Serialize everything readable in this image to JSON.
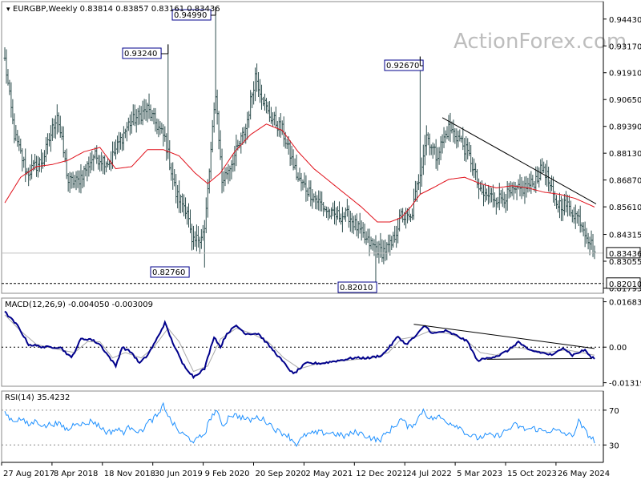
{
  "header": {
    "symbol": "EURGBP,Weekly",
    "ohlc": "0.83814 0.83857 0.83161 0.83436"
  },
  "watermark": "ActionForex.com",
  "colors": {
    "price_bars": "#2f4f4f",
    "ma": "#e0101a",
    "macd_line": "#00008b",
    "macd_signal": "#a9a9a9",
    "rsi": "#1e90ff",
    "trendline": "#000000",
    "axis": "#000000"
  },
  "chart_data": [
    {
      "type": "bar",
      "panel": "price",
      "ylim": [
        0.8155,
        0.9525
      ],
      "y_ticks": [
        "0.94430",
        "0.93170",
        "0.91910",
        "0.90650",
        "0.89390",
        "0.88130",
        "0.86870",
        "0.85610",
        "0.84315",
        "0.83055",
        "0.81795"
      ],
      "current_price_label": "0.83436",
      "dashed_level_label": "0.82010",
      "x_ticks": [
        "27 Aug 2017",
        "8 Apr 2018",
        "18 Nov 2018",
        "30 Jun 2019",
        "9 Feb 2020",
        "20 Sep 2020",
        "2 May 2021",
        "12 Dec 2021",
        "24 Jul 2022",
        "5 Mar 2023",
        "15 Oct 2023",
        "26 May 2024"
      ],
      "annotations": [
        "0.94990",
        "0.93240",
        "0.92670",
        "0.82760",
        "0.82010"
      ],
      "close_anchors": [
        [
          0,
          0.925
        ],
        [
          6,
          0.89
        ],
        [
          14,
          0.872
        ],
        [
          24,
          0.878
        ],
        [
          33,
          0.9
        ],
        [
          40,
          0.868
        ],
        [
          46,
          0.868
        ],
        [
          56,
          0.88
        ],
        [
          66,
          0.877
        ],
        [
          78,
          0.895
        ],
        [
          90,
          0.902
        ],
        [
          101,
          0.888
        ],
        [
          108,
          0.862
        ],
        [
          115,
          0.855
        ],
        [
          118,
          0.838
        ],
        [
          126,
          0.845
        ],
        [
          133,
          0.91
        ],
        [
          137,
          0.868
        ],
        [
          145,
          0.88
        ],
        [
          152,
          0.893
        ],
        [
          158,
          0.918
        ],
        [
          166,
          0.9
        ],
        [
          175,
          0.892
        ],
        [
          185,
          0.869
        ],
        [
          196,
          0.86
        ],
        [
          206,
          0.852
        ],
        [
          217,
          0.852
        ],
        [
          228,
          0.84
        ],
        [
          238,
          0.835
        ],
        [
          244,
          0.838
        ],
        [
          250,
          0.852
        ],
        [
          256,
          0.85
        ],
        [
          262,
          0.873
        ],
        [
          266,
          0.89
        ],
        [
          272,
          0.88
        ],
        [
          280,
          0.893
        ],
        [
          287,
          0.888
        ],
        [
          294,
          0.878
        ],
        [
          300,
          0.862
        ],
        [
          312,
          0.86
        ],
        [
          325,
          0.864
        ],
        [
          333,
          0.867
        ],
        [
          340,
          0.875
        ],
        [
          347,
          0.858
        ],
        [
          354,
          0.857
        ],
        [
          363,
          0.85
        ],
        [
          372,
          0.835
        ]
      ],
      "ma_anchors": [
        [
          0,
          0.858
        ],
        [
          10,
          0.87
        ],
        [
          20,
          0.875
        ],
        [
          30,
          0.876
        ],
        [
          40,
          0.878
        ],
        [
          50,
          0.882
        ],
        [
          60,
          0.884
        ],
        [
          70,
          0.874
        ],
        [
          80,
          0.875
        ],
        [
          90,
          0.883
        ],
        [
          100,
          0.883
        ],
        [
          110,
          0.88
        ],
        [
          120,
          0.872
        ],
        [
          128,
          0.867
        ],
        [
          136,
          0.872
        ],
        [
          145,
          0.882
        ],
        [
          155,
          0.89
        ],
        [
          165,
          0.895
        ],
        [
          175,
          0.892
        ],
        [
          185,
          0.882
        ],
        [
          195,
          0.874
        ],
        [
          205,
          0.868
        ],
        [
          215,
          0.862
        ],
        [
          225,
          0.856
        ],
        [
          235,
          0.849
        ],
        [
          243,
          0.849
        ],
        [
          250,
          0.851
        ],
        [
          256,
          0.856
        ],
        [
          262,
          0.862
        ],
        [
          270,
          0.865
        ],
        [
          280,
          0.869
        ],
        [
          290,
          0.87
        ],
        [
          300,
          0.867
        ],
        [
          310,
          0.865
        ],
        [
          320,
          0.866
        ],
        [
          330,
          0.865
        ],
        [
          340,
          0.863
        ],
        [
          350,
          0.862
        ],
        [
          360,
          0.86
        ],
        [
          366,
          0.858
        ],
        [
          372,
          0.856
        ]
      ],
      "forced_highs": [
        [
          103,
          0.9324
        ],
        [
          133,
          0.9499
        ],
        [
          262,
          0.9267
        ]
      ],
      "forced_lows": [
        [
          126,
          0.8276
        ],
        [
          234,
          0.8201
        ],
        [
          372,
          0.8316
        ]
      ],
      "trendline": [
        [
          276,
          0.898
        ],
        [
          373,
          0.8575
        ]
      ]
    },
    {
      "type": "line",
      "panel": "macd",
      "title": "MACD(12,26,9) -0.004050 -0.003009",
      "y_ticks": [
        "0.016838",
        "0.00",
        "-0.013195"
      ],
      "ylim": [
        -0.0145,
        0.0182
      ],
      "series": [
        {
          "role": "macd",
          "anchors": [
            [
              0,
              0.013
            ],
            [
              8,
              0.008
            ],
            [
              15,
              0.001
            ],
            [
              25,
              0.0
            ],
            [
              35,
              0.0
            ],
            [
              42,
              -0.004
            ],
            [
              48,
              0.003
            ],
            [
              54,
              0.003
            ],
            [
              60,
              0.001
            ],
            [
              65,
              -0.003
            ],
            [
              70,
              -0.007
            ],
            [
              74,
              0.0
            ],
            [
              80,
              -0.002
            ],
            [
              85,
              -0.006
            ],
            [
              90,
              -0.003
            ],
            [
              95,
              0.002
            ],
            [
              101,
              0.009
            ],
            [
              105,
              0.003
            ],
            [
              112,
              -0.006
            ],
            [
              119,
              -0.011
            ],
            [
              126,
              -0.008
            ],
            [
              132,
              0.004
            ],
            [
              136,
              0.0
            ],
            [
              140,
              0.005
            ],
            [
              146,
              0.008
            ],
            [
              152,
              0.005
            ],
            [
              160,
              0.005
            ],
            [
              166,
              0.001
            ],
            [
              172,
              -0.003
            ],
            [
              182,
              -0.01
            ],
            [
              190,
              -0.006
            ],
            [
              200,
              -0.006
            ],
            [
              210,
              -0.005
            ],
            [
              220,
              -0.004
            ],
            [
              230,
              -0.004
            ],
            [
              238,
              -0.003
            ],
            [
              244,
              0.001
            ],
            [
              248,
              0.004
            ],
            [
              253,
              0.001
            ],
            [
              259,
              0.004
            ],
            [
              265,
              0.008
            ],
            [
              270,
              0.005
            ],
            [
              278,
              0.006
            ],
            [
              286,
              0.004
            ],
            [
              292,
              0.002
            ],
            [
              298,
              -0.005
            ],
            [
              305,
              -0.004
            ],
            [
              312,
              -0.003
            ],
            [
              318,
              -0.001
            ],
            [
              324,
              0.002
            ],
            [
              330,
              -0.001
            ],
            [
              338,
              -0.002
            ],
            [
              346,
              -0.003
            ],
            [
              352,
              0.0
            ],
            [
              358,
              -0.003
            ],
            [
              362,
              -0.002
            ],
            [
              366,
              -0.001
            ],
            [
              370,
              -0.004
            ]
          ]
        },
        {
          "role": "signal",
          "anchors": [
            [
              0,
              0.012
            ],
            [
              10,
              0.006
            ],
            [
              20,
              0.001
            ],
            [
              35,
              -0.001
            ],
            [
              44,
              -0.002
            ],
            [
              52,
              0.002
            ],
            [
              60,
              0.002
            ],
            [
              68,
              -0.004
            ],
            [
              76,
              -0.002
            ],
            [
              86,
              -0.004
            ],
            [
              94,
              0.0
            ],
            [
              103,
              0.007
            ],
            [
              110,
              0.002
            ],
            [
              119,
              -0.009
            ],
            [
              128,
              -0.007
            ],
            [
              136,
              0.003
            ],
            [
              146,
              0.007
            ],
            [
              156,
              0.005
            ],
            [
              166,
              0.002
            ],
            [
              176,
              -0.004
            ],
            [
              186,
              -0.008
            ],
            [
              198,
              -0.006
            ],
            [
              214,
              -0.005
            ],
            [
              232,
              -0.004
            ],
            [
              242,
              -0.002
            ],
            [
              250,
              0.003
            ],
            [
              260,
              0.004
            ],
            [
              268,
              0.006
            ],
            [
              280,
              0.005
            ],
            [
              290,
              0.003
            ],
            [
              300,
              -0.002
            ],
            [
              310,
              -0.003
            ],
            [
              322,
              0.0
            ],
            [
              332,
              -0.001
            ],
            [
              342,
              -0.002
            ],
            [
              354,
              -0.001
            ],
            [
              364,
              -0.002
            ],
            [
              372,
              -0.003
            ]
          ]
        }
      ],
      "trendlines": [
        [
          [
            258,
            0.0085
          ],
          [
            372,
            -0.0005
          ]
        ],
        [
          [
            304,
            -0.0045
          ],
          [
            370,
            -0.0042
          ]
        ]
      ]
    },
    {
      "type": "line",
      "panel": "rsi",
      "title": "RSI(14) 35.4232",
      "y_ticks": [
        "70",
        "30"
      ],
      "ylim": [
        10,
        92
      ],
      "levels": [
        70,
        30
      ],
      "anchors": [
        [
          0,
          67
        ],
        [
          5,
          58
        ],
        [
          10,
          60
        ],
        [
          15,
          53
        ],
        [
          20,
          58
        ],
        [
          25,
          51
        ],
        [
          30,
          55
        ],
        [
          35,
          53
        ],
        [
          40,
          47
        ],
        [
          45,
          57
        ],
        [
          50,
          53
        ],
        [
          55,
          58
        ],
        [
          60,
          51
        ],
        [
          65,
          44
        ],
        [
          70,
          48
        ],
        [
          75,
          45
        ],
        [
          80,
          52
        ],
        [
          85,
          44
        ],
        [
          90,
          55
        ],
        [
          95,
          62
        ],
        [
          98,
          66
        ],
        [
          100,
          77
        ],
        [
          104,
          60
        ],
        [
          110,
          45
        ],
        [
          116,
          38
        ],
        [
          120,
          34
        ],
        [
          126,
          43
        ],
        [
          130,
          62
        ],
        [
          133,
          69
        ],
        [
          138,
          52
        ],
        [
          142,
          65
        ],
        [
          148,
          63
        ],
        [
          154,
          58
        ],
        [
          160,
          62
        ],
        [
          166,
          56
        ],
        [
          172,
          46
        ],
        [
          178,
          42
        ],
        [
          184,
          31
        ],
        [
          190,
          42
        ],
        [
          198,
          44
        ],
        [
          206,
          44
        ],
        [
          214,
          40
        ],
        [
          222,
          45
        ],
        [
          230,
          39
        ],
        [
          236,
          35
        ],
        [
          240,
          42
        ],
        [
          246,
          52
        ],
        [
          250,
          60
        ],
        [
          255,
          50
        ],
        [
          260,
          58
        ],
        [
          264,
          71
        ],
        [
          268,
          60
        ],
        [
          274,
          62
        ],
        [
          280,
          56
        ],
        [
          286,
          52
        ],
        [
          292,
          42
        ],
        [
          298,
          38
        ],
        [
          304,
          41
        ],
        [
          310,
          40
        ],
        [
          316,
          46
        ],
        [
          322,
          53
        ],
        [
          328,
          48
        ],
        [
          334,
          49
        ],
        [
          340,
          46
        ],
        [
          346,
          47
        ],
        [
          352,
          44
        ],
        [
          358,
          40
        ],
        [
          362,
          57
        ],
        [
          366,
          46
        ],
        [
          370,
          38
        ],
        [
          372,
          35
        ]
      ]
    }
  ]
}
